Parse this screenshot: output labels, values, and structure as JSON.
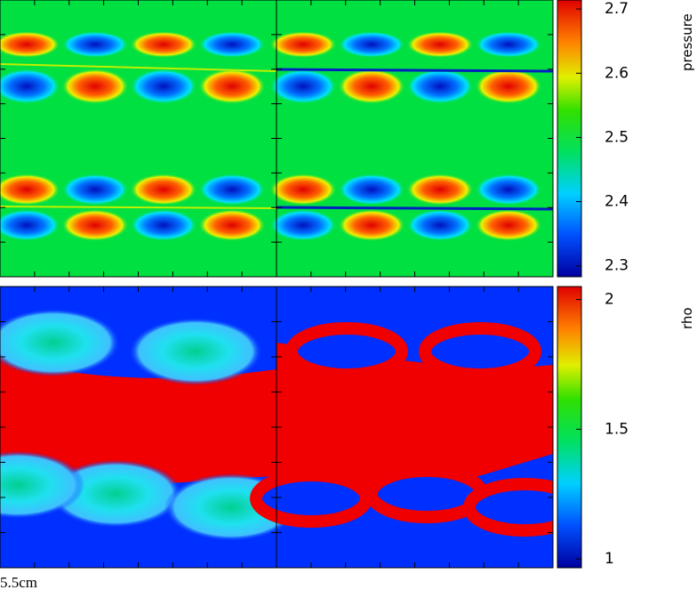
{
  "colorbars": [
    {
      "label": "pressure",
      "lim": [
        2.283,
        2.714
      ],
      "ticks": [
        2.3,
        2.4,
        2.5,
        2.6,
        2.7
      ]
    },
    {
      "label": "rho",
      "lim": [
        0.966,
        2.05
      ],
      "ticks": [
        1,
        1.5,
        2
      ]
    }
  ],
  "scale_label": "5.5cm"
}
